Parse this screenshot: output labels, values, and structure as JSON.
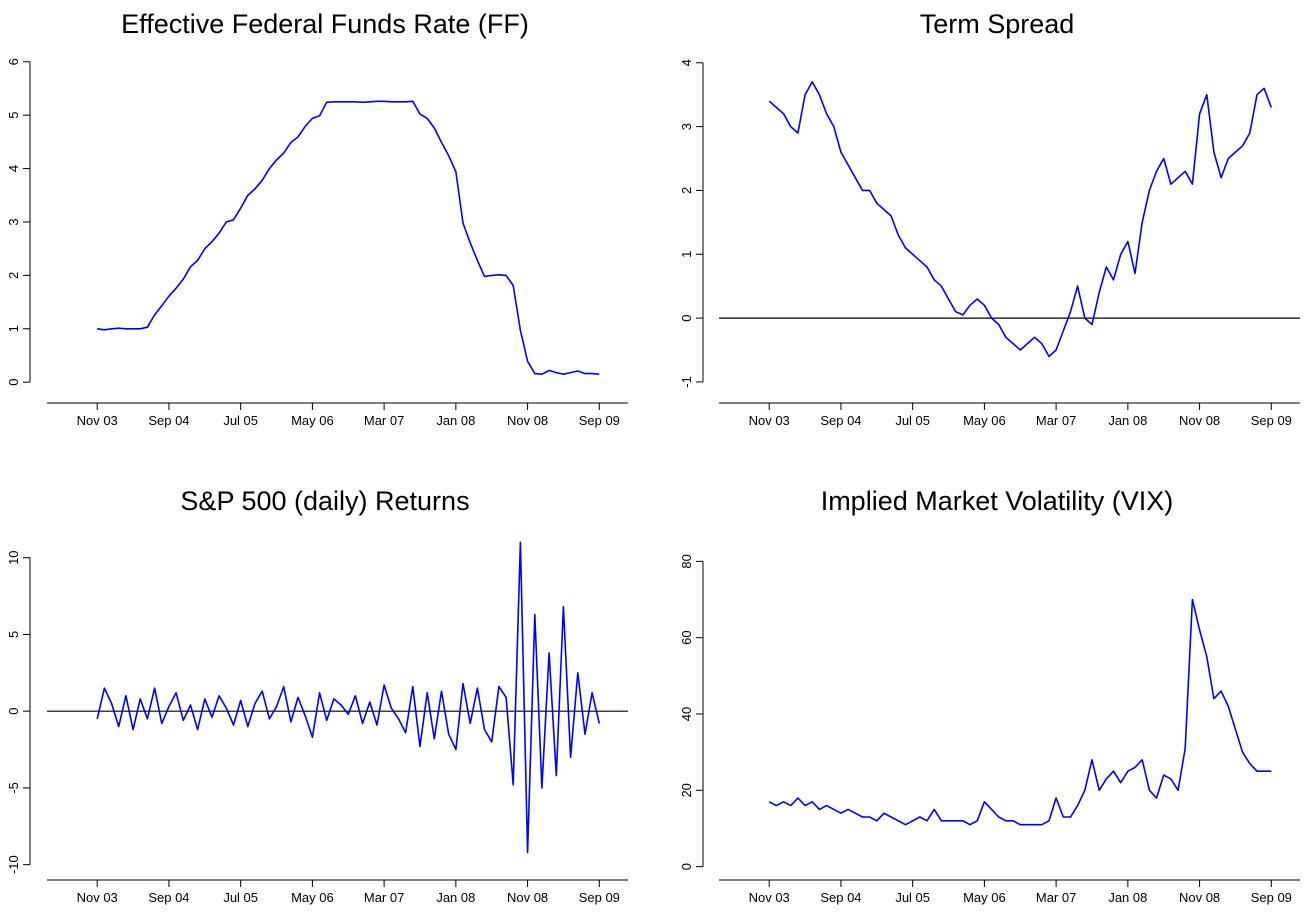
{
  "chart_data": [
    {
      "type": "line",
      "title": "Effective Federal Funds Rate (FF)",
      "x": [
        "2003-11",
        "2003-12",
        "2004-01",
        "2004-02",
        "2004-03",
        "2004-04",
        "2004-05",
        "2004-06",
        "2004-07",
        "2004-08",
        "2004-09",
        "2004-10",
        "2004-11",
        "2004-12",
        "2005-01",
        "2005-02",
        "2005-03",
        "2005-04",
        "2005-05",
        "2005-06",
        "2005-07",
        "2005-08",
        "2005-09",
        "2005-10",
        "2005-11",
        "2005-12",
        "2006-01",
        "2006-02",
        "2006-03",
        "2006-04",
        "2006-05",
        "2006-06",
        "2006-07",
        "2006-08",
        "2006-09",
        "2006-10",
        "2006-11",
        "2006-12",
        "2007-01",
        "2007-02",
        "2007-03",
        "2007-04",
        "2007-05",
        "2007-06",
        "2007-07",
        "2007-08",
        "2007-09",
        "2007-10",
        "2007-11",
        "2007-12",
        "2008-01",
        "2008-02",
        "2008-03",
        "2008-04",
        "2008-05",
        "2008-06",
        "2008-07",
        "2008-08",
        "2008-09",
        "2008-10",
        "2008-11",
        "2008-12",
        "2009-01",
        "2009-02",
        "2009-03",
        "2009-04",
        "2009-05",
        "2009-06",
        "2009-07",
        "2009-08",
        "2009-09"
      ],
      "values": [
        1.0,
        0.98,
        1.0,
        1.01,
        1.0,
        1.0,
        1.0,
        1.03,
        1.26,
        1.43,
        1.61,
        1.76,
        1.93,
        2.16,
        2.28,
        2.5,
        2.63,
        2.79,
        3.0,
        3.04,
        3.26,
        3.5,
        3.62,
        3.78,
        4.0,
        4.16,
        4.29,
        4.49,
        4.59,
        4.79,
        4.94,
        4.99,
        5.24,
        5.25,
        5.25,
        5.25,
        5.25,
        5.24,
        5.25,
        5.26,
        5.26,
        5.25,
        5.25,
        5.25,
        5.26,
        5.02,
        4.94,
        4.76,
        4.49,
        4.24,
        3.94,
        2.98,
        2.61,
        2.28,
        1.98,
        2.0,
        2.01,
        2.0,
        1.81,
        0.97,
        0.39,
        0.16,
        0.15,
        0.22,
        0.18,
        0.15,
        0.18,
        0.21,
        0.16,
        0.16,
        0.15
      ],
      "color": "#0000ff",
      "xlim": [
        "2003-04",
        "2010-01"
      ],
      "xticks": [
        {
          "value": "2003-11",
          "label": "Nov 03"
        },
        {
          "value": "2004-09",
          "label": "Sep 04"
        },
        {
          "value": "2005-07",
          "label": "Jul 05"
        },
        {
          "value": "2006-05",
          "label": "May 06"
        },
        {
          "value": "2007-03",
          "label": "Mar 07"
        },
        {
          "value": "2008-01",
          "label": "Jan 08"
        },
        {
          "value": "2008-11",
          "label": "Nov 08"
        },
        {
          "value": "2009-09",
          "label": "Sep 09"
        }
      ],
      "ylim": [
        -0.39,
        6.22
      ],
      "yticks": [
        0,
        1,
        2,
        3,
        4,
        5,
        6
      ]
    },
    {
      "type": "line",
      "title": "Term Spread",
      "x": [
        "2003-11",
        "2003-12",
        "2004-01",
        "2004-02",
        "2004-03",
        "2004-04",
        "2004-05",
        "2004-06",
        "2004-07",
        "2004-08",
        "2004-09",
        "2004-10",
        "2004-11",
        "2004-12",
        "2005-01",
        "2005-02",
        "2005-03",
        "2005-04",
        "2005-05",
        "2005-06",
        "2005-07",
        "2005-08",
        "2005-09",
        "2005-10",
        "2005-11",
        "2005-12",
        "2006-01",
        "2006-02",
        "2006-03",
        "2006-04",
        "2006-05",
        "2006-06",
        "2006-07",
        "2006-08",
        "2006-09",
        "2006-10",
        "2006-11",
        "2006-12",
        "2007-01",
        "2007-02",
        "2007-03",
        "2007-04",
        "2007-05",
        "2007-06",
        "2007-07",
        "2007-08",
        "2007-09",
        "2007-10",
        "2007-11",
        "2007-12",
        "2008-01",
        "2008-02",
        "2008-03",
        "2008-04",
        "2008-05",
        "2008-06",
        "2008-07",
        "2008-08",
        "2008-09",
        "2008-10",
        "2008-11",
        "2008-12",
        "2009-01",
        "2009-02",
        "2009-03",
        "2009-04",
        "2009-05",
        "2009-06",
        "2009-07",
        "2009-08",
        "2009-09"
      ],
      "values": [
        3.4,
        3.3,
        3.2,
        3.0,
        2.9,
        3.5,
        3.7,
        3.5,
        3.2,
        3.0,
        2.6,
        2.4,
        2.2,
        2.0,
        2.0,
        1.8,
        1.7,
        1.6,
        1.3,
        1.1,
        1.0,
        0.9,
        0.8,
        0.6,
        0.5,
        0.3,
        0.1,
        0.05,
        0.2,
        0.3,
        0.2,
        0.0,
        -0.1,
        -0.3,
        -0.4,
        -0.5,
        -0.4,
        -0.3,
        -0.4,
        -0.6,
        -0.5,
        -0.2,
        0.1,
        0.5,
        0.0,
        -0.1,
        0.4,
        0.8,
        0.6,
        1.0,
        1.2,
        0.7,
        1.5,
        2.0,
        2.3,
        2.5,
        2.1,
        2.2,
        2.3,
        2.1,
        3.2,
        3.5,
        2.6,
        2.2,
        2.5,
        2.6,
        2.7,
        2.9,
        3.5,
        3.6,
        3.3
      ],
      "color": "#0000ff",
      "xlim": [
        "2003-04",
        "2010-01"
      ],
      "xticks": [
        {
          "value": "2003-11",
          "label": "Nov 03"
        },
        {
          "value": "2004-09",
          "label": "Sep 04"
        },
        {
          "value": "2005-07",
          "label": "Jul 05"
        },
        {
          "value": "2006-05",
          "label": "May 06"
        },
        {
          "value": "2007-03",
          "label": "Mar 07"
        },
        {
          "value": "2008-01",
          "label": "Jan 08"
        },
        {
          "value": "2008-11",
          "label": "Nov 08"
        },
        {
          "value": "2009-09",
          "label": "Sep 09"
        }
      ],
      "ylim": [
        -1.33,
        4.2
      ],
      "yticks": [
        -1,
        0,
        1,
        2,
        3,
        4
      ],
      "reference_line": 0
    },
    {
      "type": "line",
      "title": "S&P 500 (daily) Returns",
      "x": [
        "2003-11",
        "2003-12",
        "2004-01",
        "2004-02",
        "2004-03",
        "2004-04",
        "2004-05",
        "2004-06",
        "2004-07",
        "2004-08",
        "2004-09",
        "2004-10",
        "2004-11",
        "2004-12",
        "2005-01",
        "2005-02",
        "2005-03",
        "2005-04",
        "2005-05",
        "2005-06",
        "2005-07",
        "2005-08",
        "2005-09",
        "2005-10",
        "2005-11",
        "2005-12",
        "2006-01",
        "2006-02",
        "2006-03",
        "2006-04",
        "2006-05",
        "2006-06",
        "2006-07",
        "2006-08",
        "2006-09",
        "2006-10",
        "2006-11",
        "2006-12",
        "2007-01",
        "2007-02",
        "2007-03",
        "2007-04",
        "2007-05",
        "2007-06",
        "2007-07",
        "2007-08",
        "2007-09",
        "2007-10",
        "2007-11",
        "2007-12",
        "2008-01",
        "2008-02",
        "2008-03",
        "2008-04",
        "2008-05",
        "2008-06",
        "2008-07",
        "2008-08",
        "2008-09",
        "2008-10",
        "2008-11",
        "2008-12",
        "2009-01",
        "2009-02",
        "2009-03",
        "2009-04",
        "2009-05",
        "2009-06",
        "2009-07",
        "2009-08",
        "2009-09"
      ],
      "values": [
        -0.5,
        1.5,
        0.5,
        -1.0,
        1.0,
        -1.2,
        0.8,
        -0.5,
        1.5,
        -0.8,
        0.3,
        1.2,
        -0.6,
        0.4,
        -1.2,
        0.8,
        -0.4,
        1.0,
        0.2,
        -0.9,
        0.7,
        -1.0,
        0.5,
        1.3,
        -0.5,
        0.3,
        1.6,
        -0.7,
        0.9,
        -0.3,
        -1.7,
        1.2,
        -0.6,
        0.8,
        0.4,
        -0.2,
        1.0,
        -0.8,
        0.6,
        -0.9,
        1.7,
        0.2,
        -0.5,
        -1.4,
        1.6,
        -2.3,
        1.2,
        -1.8,
        1.3,
        -1.5,
        -2.5,
        1.8,
        -0.8,
        1.5,
        -1.2,
        -2.0,
        1.6,
        0.9,
        -4.8,
        11.0,
        -9.2,
        6.3,
        -5.0,
        3.8,
        -4.2,
        6.8,
        -3.0,
        2.5,
        -1.5,
        1.2,
        -0.8
      ],
      "color": "#0000ff",
      "xlim": [
        "2003-04",
        "2010-01"
      ],
      "xticks": [
        {
          "value": "2003-11",
          "label": "Nov 03"
        },
        {
          "value": "2004-09",
          "label": "Sep 04"
        },
        {
          "value": "2005-07",
          "label": "Jul 05"
        },
        {
          "value": "2006-05",
          "label": "May 06"
        },
        {
          "value": "2007-03",
          "label": "Mar 07"
        },
        {
          "value": "2008-01",
          "label": "Jan 08"
        },
        {
          "value": "2008-11",
          "label": "Nov 08"
        },
        {
          "value": "2009-09",
          "label": "Sep 09"
        }
      ],
      "ylim": [
        -11,
        12
      ],
      "yticks": [
        -10,
        -5,
        0,
        5,
        10
      ],
      "reference_line": 0
    },
    {
      "type": "line",
      "title": "Implied Market Volatility (VIX)",
      "x": [
        "2003-11",
        "2003-12",
        "2004-01",
        "2004-02",
        "2004-03",
        "2004-04",
        "2004-05",
        "2004-06",
        "2004-07",
        "2004-08",
        "2004-09",
        "2004-10",
        "2004-11",
        "2004-12",
        "2005-01",
        "2005-02",
        "2005-03",
        "2005-04",
        "2005-05",
        "2005-06",
        "2005-07",
        "2005-08",
        "2005-09",
        "2005-10",
        "2005-11",
        "2005-12",
        "2006-01",
        "2006-02",
        "2006-03",
        "2006-04",
        "2006-05",
        "2006-06",
        "2006-07",
        "2006-08",
        "2006-09",
        "2006-10",
        "2006-11",
        "2006-12",
        "2007-01",
        "2007-02",
        "2007-03",
        "2007-04",
        "2007-05",
        "2007-06",
        "2007-07",
        "2007-08",
        "2007-09",
        "2007-10",
        "2007-11",
        "2007-12",
        "2008-01",
        "2008-02",
        "2008-03",
        "2008-04",
        "2008-05",
        "2008-06",
        "2008-07",
        "2008-08",
        "2008-09",
        "2008-10",
        "2008-11",
        "2008-12",
        "2009-01",
        "2009-02",
        "2009-03",
        "2009-04",
        "2009-05",
        "2009-06",
        "2009-07",
        "2009-08",
        "2009-09"
      ],
      "values": [
        17,
        16,
        17,
        16,
        18,
        16,
        17,
        15,
        16,
        15,
        14,
        15,
        14,
        13,
        13,
        12,
        14,
        13,
        12,
        11,
        12,
        13,
        12,
        15,
        12,
        12,
        12,
        12,
        11,
        12,
        17,
        15,
        13,
        12,
        12,
        11,
        11,
        11,
        11,
        12,
        18,
        13,
        13,
        16,
        20,
        28,
        20,
        23,
        25,
        22,
        25,
        26,
        28,
        20,
        18,
        24,
        23,
        20,
        31,
        70,
        62,
        55,
        44,
        46,
        42,
        36,
        30,
        27,
        25,
        25,
        25
      ],
      "color": "#0000ff",
      "xlim": [
        "2003-04",
        "2010-01"
      ],
      "xticks": [
        {
          "value": "2003-11",
          "label": "Nov 03"
        },
        {
          "value": "2004-09",
          "label": "Sep 04"
        },
        {
          "value": "2005-07",
          "label": "Jul 05"
        },
        {
          "value": "2006-05",
          "label": "May 06"
        },
        {
          "value": "2007-03",
          "label": "Mar 07"
        },
        {
          "value": "2008-01",
          "label": "Jan 08"
        },
        {
          "value": "2008-11",
          "label": "Nov 08"
        },
        {
          "value": "2009-09",
          "label": "Sep 09"
        }
      ],
      "ylim": [
        -3.5,
        89
      ],
      "yticks": [
        0,
        20,
        40,
        60,
        80
      ]
    }
  ]
}
